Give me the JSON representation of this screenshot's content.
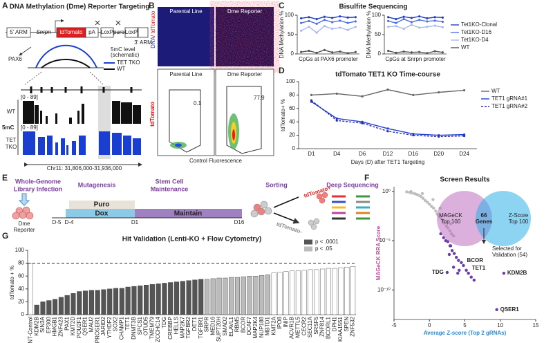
{
  "panels": {
    "A": {
      "letter": "A",
      "title": "DNA Methylation (Dme) Reporter Targeting",
      "construct": [
        "5' ARM",
        "Snrpn",
        "tdTomato",
        "pA",
        "LoxP",
        "puro",
        "LoxP",
        "3' ARM"
      ],
      "gene": "PAX6",
      "schematic_label": [
        "5mC level",
        "(schematic)"
      ],
      "legend": [
        "TET TKO",
        "WT"
      ],
      "track_range": [
        "[0 - 89]",
        "[0 - 89]"
      ],
      "tracks": [
        "WT",
        "TET",
        "TKO"
      ],
      "mark": "5mC",
      "region": "Chr11: 31,806,000-31,936,000"
    },
    "B": {
      "letter": "B",
      "stain": [
        "DNA ",
        "/ tdTomato"
      ],
      "images": [
        "Parental Line",
        "Dme Reporter"
      ],
      "plots": [
        "Parental Line",
        "Dme Reporter"
      ],
      "gates": [
        "0.1",
        "77.9"
      ],
      "ylabel": "tdTomato",
      "xlabel": "Control Fluorescence"
    },
    "C": {
      "letter": "C",
      "title": "Bisulfite Sequencing"
    },
    "D": {
      "letter": "D"
    },
    "E": {
      "letter": "E",
      "steps": [
        "Whole-Genome",
        "Library Infection",
        "Mutagenesis",
        "Stem Cell",
        "Maintenance",
        "Sorting",
        "Deep Sequencing"
      ],
      "cell_label": [
        "Dme",
        "Reporter"
      ],
      "bars": [
        "Puro",
        "Dox",
        "Maintain"
      ],
      "days": [
        "D-5",
        "D-4",
        "D1",
        "D16"
      ],
      "sorts": [
        "tdTomato+",
        "tdTomato-"
      ]
    },
    "F": {
      "letter": "F"
    },
    "G": {
      "letter": "G"
    }
  },
  "chart_data": [
    {
      "type": "line",
      "ylabel": "DNA Methylation %",
      "xlabel": "CpGs at PAX6 promoter",
      "categories": [
        null,
        null,
        null,
        null,
        null,
        null,
        null,
        null
      ],
      "ylim": [
        0,
        100
      ],
      "yticks": [
        0,
        50,
        100
      ],
      "series": [
        {
          "color": "#1f3fbf",
          "values": [
            92,
            95,
            90,
            96,
            93,
            97,
            94,
            95
          ]
        },
        {
          "color": "#4f6fe0",
          "values": [
            80,
            85,
            78,
            88,
            82,
            86,
            80,
            84
          ]
        },
        {
          "color": "#a8b8f0",
          "values": [
            60,
            70,
            55,
            72,
            65,
            68,
            62,
            70
          ]
        },
        {
          "color": "#555555",
          "values": [
            5,
            8,
            3,
            10,
            4,
            6,
            2,
            5
          ]
        }
      ]
    },
    {
      "type": "line",
      "ylabel": "DNA Methylation %",
      "xlabel": "CpGs at Snrpn promoter",
      "categories": [
        null,
        null,
        null,
        null,
        null,
        null,
        null,
        null
      ],
      "ylim": [
        0,
        100
      ],
      "yticks": [
        0,
        50,
        100
      ],
      "legend": "right",
      "series": [
        {
          "name": "Tet1KO-Clonal",
          "color": "#1f3fbf",
          "values": [
            95,
            90,
            96,
            93,
            97,
            92,
            95,
            94
          ]
        },
        {
          "name": "Tet1KO-D16",
          "color": "#4f6fe0",
          "values": [
            85,
            80,
            90,
            82,
            88,
            84,
            86,
            83
          ]
        },
        {
          "name": "Tet1KO-D4",
          "color": "#a8b8f0",
          "values": [
            70,
            72,
            65,
            75,
            68,
            70,
            73,
            69
          ]
        },
        {
          "name": "WT",
          "color": "#555555",
          "values": [
            8,
            3,
            6,
            4,
            5,
            2,
            7,
            4
          ]
        }
      ]
    },
    {
      "type": "line",
      "title": "tdTomato TET1 KO Time-course",
      "ylabel": "tdTomato+ %",
      "xlabel": "Days (D) after TET1 Targeting",
      "categories": [
        "D1",
        "D4",
        "D6",
        "D12",
        "D16",
        "D20",
        "D24"
      ],
      "ylim": [
        0,
        100
      ],
      "yticks": [
        0,
        20,
        40,
        60,
        80,
        100
      ],
      "legend": "right",
      "series": [
        {
          "name": "WT",
          "color": "#666666",
          "values": [
            80,
            82,
            78,
            88,
            80,
            84,
            87
          ]
        },
        {
          "name": "TET1 gRNA#1",
          "color": "#1f3fd0",
          "values": [
            70,
            45,
            40,
            30,
            22,
            20,
            21
          ]
        },
        {
          "name": "TET1 gRNA#2",
          "color": "#2a2ab0",
          "dash": true,
          "values": [
            72,
            42,
            38,
            26,
            20,
            18,
            19
          ]
        }
      ]
    },
    {
      "type": "scatter",
      "title": "Screen Results",
      "ylabel": "MAGeCK RRA Score",
      "xlabel": "Average Z-score (Top 2 gRNAs)",
      "log_y": true,
      "xlim": [
        -5,
        15
      ],
      "xticks": [
        -5,
        0,
        5,
        10,
        15
      ],
      "ylim": [
        1e-13,
        3
      ],
      "yticks": [
        {
          "value": 1,
          "label": "10⁰"
        },
        {
          "value": 1e-05,
          "label": "10⁻⁵"
        },
        {
          "value": 1e-10,
          "label": "10⁻¹⁰"
        }
      ],
      "venn": {
        "left": [
          "MAGeCK",
          "Top 100"
        ],
        "right": [
          "Z-Score",
          "Top 100"
        ],
        "center": [
          "66",
          "Genes"
        ],
        "note": [
          "Selected for",
          "Validation (54)"
        ]
      },
      "series": [
        {
          "color": "#bdbdbd",
          "x": [
            -3.2,
            -2.8,
            -2.5,
            -2.1,
            -1.8,
            -1.5,
            -1.2,
            -0.9,
            -0.6,
            -0.3,
            0,
            0.3,
            0.6,
            0.9,
            1.1,
            1.4,
            1.6,
            1.9,
            2.1,
            2.4,
            2.6,
            2.9,
            3.1,
            3.4,
            -2.6,
            -1.0,
            0.5,
            1.5,
            2.2,
            3.0
          ],
          "values": [
            0.9,
            0.8,
            0.7,
            0.6,
            0.5,
            0.4,
            0.3,
            0.2,
            0.12,
            0.08,
            0.05,
            0.03,
            0.02,
            0.01,
            0.005,
            0.003,
            0.002,
            0.001,
            0.0006,
            0.0003,
            0.0002,
            0.0001,
            5e-05,
            3e-05,
            0.95,
            0.6,
            0.15,
            0.02,
            0.004,
            0.0005
          ]
        },
        {
          "color": "#6a3ca8",
          "x": [
            1.6,
            2.0,
            2.3,
            2.6,
            2.9,
            3.2,
            3.5,
            3.8,
            4.1,
            4.5,
            4.8,
            5.2,
            5.5,
            5.9,
            6.3,
            2.8,
            3.4,
            4.0,
            2.5,
            5.5,
            10.5,
            9.5,
            3.0,
            4.2
          ],
          "values": [
            5e-05,
            2e-05,
            1e-05,
            8e-06,
            3e-06,
            1e-06,
            5e-07,
            2e-07,
            1e-07,
            6e-08,
            3e-08,
            1e-08,
            5e-09,
            2e-09,
            1e-09,
            4e-07,
            2e-08,
            5e-09,
            6e-09,
            5e-09,
            5e-09,
            1e-12,
            3e-06,
            1e-08
          ],
          "labels": [
            null,
            null,
            null,
            null,
            null,
            null,
            null,
            null,
            null,
            null,
            "BCOR",
            null,
            null,
            null,
            null,
            null,
            null,
            null,
            "TDG",
            "TET1",
            "KDM2B",
            "QSER1",
            null,
            null
          ]
        }
      ]
    },
    {
      "type": "bar",
      "title": "Hit Validation (Lenti-KO + Flow Cytometry)",
      "ylabel": "tdTomato + %",
      "ylim": [
        0,
        100
      ],
      "yticks": [
        0,
        20,
        40,
        60,
        80,
        100
      ],
      "reference_line": 80,
      "legend": [
        {
          "label": "p < .0001",
          "color": "#555555"
        },
        {
          "label": "p < .05",
          "color": "#bbbbbb"
        }
      ],
      "categories": [
        "NT-Control",
        "KDM2B",
        "SIN3A",
        "EP300",
        "HMGB1",
        "ZNF423",
        "PAX1",
        "KMT2D",
        "POU2F1",
        "QSER1",
        "MAU2",
        "PROSER1",
        "JARID2",
        "YTHDF2",
        "SOX2",
        "CHAMP1",
        "TET1",
        "DNMT3B",
        "SPCS1",
        "OTUD5",
        "TMEM79",
        "ZCCHC14",
        "TDG",
        "CREBBP",
        "HELLS",
        "MAP2K7",
        "TGFBR2",
        "DET1",
        "TGFBR1",
        "SRPR",
        "MED16",
        "SUPT20H",
        "SMAD2",
        "ELAVL1",
        "RBM5",
        "BCOR",
        "DCAF7",
        "MAP2K4",
        "NUP188",
        "MBTD1",
        "KMT2A",
        "IPO8",
        "INIP",
        "ACVR1B",
        "METTL5",
        "CECR2",
        "SEC11A",
        "SRSF5",
        "ZNF814",
        "BCORL1",
        "DPH1",
        "KIAA1551",
        "SPEN",
        "ZNF532"
      ],
      "values": [
        80,
        15,
        20,
        22,
        24,
        27,
        30,
        33,
        36,
        37,
        38,
        38,
        39,
        40,
        41,
        41,
        43,
        44,
        45,
        46,
        47,
        48,
        49,
        50,
        51,
        52,
        53,
        54,
        55,
        55,
        56,
        57,
        57,
        58,
        58,
        59,
        60,
        60,
        61,
        62,
        65,
        66,
        67,
        68,
        68,
        69,
        70,
        70,
        71,
        72,
        72,
        73,
        74,
        75
      ],
      "colors": [
        "#ffffff",
        "#555555",
        "#555555",
        "#555555",
        "#555555",
        "#555555",
        "#555555",
        "#555555",
        "#555555",
        "#555555",
        "#555555",
        "#555555",
        "#555555",
        "#555555",
        "#555555",
        "#555555",
        "#555555",
        "#555555",
        "#555555",
        "#555555",
        "#555555",
        "#555555",
        "#555555",
        "#555555",
        "#555555",
        "#555555",
        "#555555",
        "#555555",
        "#555555",
        "#bbbbbb",
        "#bbbbbb",
        "#bbbbbb",
        "#bbbbbb",
        "#bbbbbb",
        "#bbbbbb",
        "#bbbbbb",
        "#bbbbbb",
        "#bbbbbb",
        "#bbbbbb",
        "#bbbbbb",
        "#ffffff",
        "#ffffff",
        "#ffffff",
        "#ffffff",
        "#ffffff",
        "#ffffff",
        "#ffffff",
        "#ffffff",
        "#ffffff",
        "#ffffff",
        "#ffffff",
        "#ffffff",
        "#ffffff",
        "#ffffff"
      ]
    }
  ]
}
